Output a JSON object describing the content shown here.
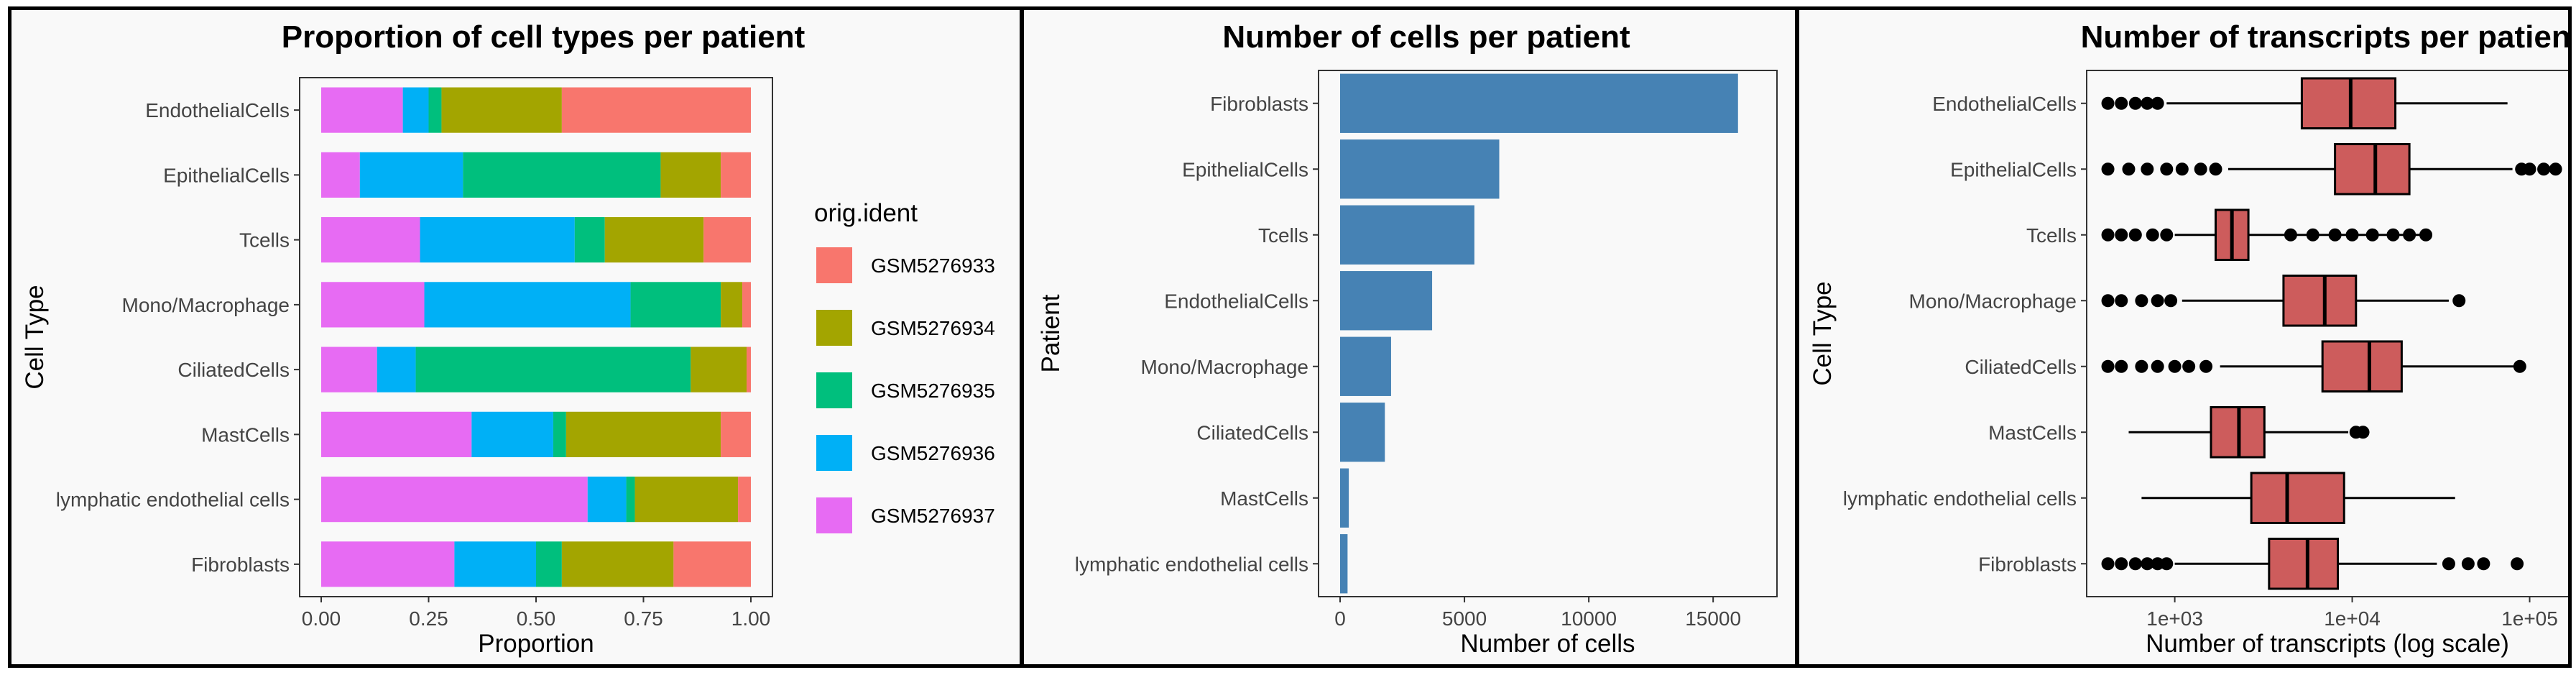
{
  "chart_data": [
    {
      "type": "bar",
      "orientation": "horizontal",
      "stacked": true,
      "title": "Proportion of cell types per patient",
      "xlabel": "Proportion",
      "ylabel": "Cell Type",
      "xlim": [
        0,
        1
      ],
      "xticks": [
        "0.00",
        "0.25",
        "0.50",
        "0.75",
        "1.00"
      ],
      "categories": [
        "EndothelialCells",
        "EpithelialCells",
        "Tcells",
        "Mono/Macrophage",
        "CiliatedCells",
        "MastCells",
        "lymphatic endothelial cells",
        "Fibroblasts"
      ],
      "legend": {
        "title": "orig.ident",
        "position": "right"
      },
      "series": [
        {
          "name": "GSM5276937",
          "color": "#E76BF3",
          "values": [
            0.19,
            0.09,
            0.23,
            0.24,
            0.13,
            0.35,
            0.62,
            0.31
          ]
        },
        {
          "name": "GSM5276936",
          "color": "#00B0F6",
          "values": [
            0.06,
            0.24,
            0.36,
            0.48,
            0.09,
            0.19,
            0.09,
            0.19
          ]
        },
        {
          "name": "GSM5276935",
          "color": "#00BF7D",
          "values": [
            0.03,
            0.46,
            0.07,
            0.21,
            0.64,
            0.03,
            0.02,
            0.06
          ]
        },
        {
          "name": "GSM5276934",
          "color": "#A3A500",
          "values": [
            0.28,
            0.14,
            0.23,
            0.05,
            0.13,
            0.36,
            0.24,
            0.26
          ]
        },
        {
          "name": "GSM5276933",
          "color": "#F8766D",
          "values": [
            0.44,
            0.07,
            0.11,
            0.02,
            0.01,
            0.07,
            0.03,
            0.18
          ]
        }
      ]
    },
    {
      "type": "bar",
      "orientation": "horizontal",
      "title": "Number of cells per patient",
      "xlabel": "Number of cells",
      "ylabel": "Patient",
      "xlim": [
        0,
        16700
      ],
      "xticks": [
        0,
        5000,
        10000,
        15000
      ],
      "color": "#4682B4",
      "categories": [
        "Fibroblasts",
        "EpithelialCells",
        "Tcells",
        "EndothelialCells",
        "Mono/Macrophage",
        "CiliatedCells",
        "MastCells",
        "lymphatic endothelial cells"
      ],
      "values": [
        16000,
        6400,
        5400,
        3700,
        2050,
        1800,
        350,
        300
      ]
    },
    {
      "type": "boxplot",
      "orientation": "horizontal",
      "title": "Number of transcripts per patient",
      "xlabel": "Number of transcripts (log scale)",
      "ylabel": "Cell Type",
      "xscale": "log",
      "xlim": [
        350,
        150000
      ],
      "xticks": [
        "1e+03",
        "1e+04",
        "1e+05"
      ],
      "fill": "#CD5C5C",
      "categories": [
        "EndothelialCells",
        "EpithelialCells",
        "Tcells",
        "Mono/Macrophage",
        "CiliatedCells",
        "MastCells",
        "lymphatic endothelial cells",
        "Fibroblasts"
      ],
      "boxes": [
        {
          "whislo": 900,
          "q1": 5200,
          "med": 9800,
          "q3": 17500,
          "whishi": 75000,
          "outliers": [
            420,
            500,
            600,
            700,
            800
          ]
        },
        {
          "whislo": 2000,
          "q1": 8000,
          "med": 13500,
          "q3": 21000,
          "whishi": 80000,
          "outliers": [
            420,
            550,
            700,
            900,
            1100,
            1400,
            1700,
            90000,
            100000,
            120000,
            140000
          ]
        },
        {
          "whislo": 1000,
          "q1": 1700,
          "med": 2100,
          "q3": 2600,
          "whishi": 25000,
          "outliers": [
            420,
            500,
            600,
            750,
            900,
            4500,
            6000,
            8000,
            10000,
            13000,
            17000,
            21000,
            26000
          ]
        },
        {
          "whislo": 1100,
          "q1": 4100,
          "med": 7000,
          "q3": 10500,
          "whishi": 35000,
          "outliers": [
            420,
            500,
            650,
            800,
            950,
            40000
          ]
        },
        {
          "whislo": 1800,
          "q1": 6800,
          "med": 12500,
          "q3": 19000,
          "whishi": 85000,
          "outliers": [
            420,
            500,
            650,
            800,
            1000,
            1200,
            1500,
            88000
          ]
        },
        {
          "whislo": 550,
          "q1": 1600,
          "med": 2300,
          "q3": 3200,
          "whishi": 9500,
          "outliers": [
            10500,
            11500
          ]
        },
        {
          "whislo": 650,
          "q1": 2700,
          "med": 4300,
          "q3": 9000,
          "whishi": 38000,
          "outliers": []
        },
        {
          "whislo": 1000,
          "q1": 3400,
          "med": 5600,
          "q3": 8300,
          "whishi": 30000,
          "outliers": [
            420,
            500,
            600,
            700,
            800,
            900,
            35000,
            45000,
            55000,
            85000
          ]
        }
      ]
    }
  ]
}
